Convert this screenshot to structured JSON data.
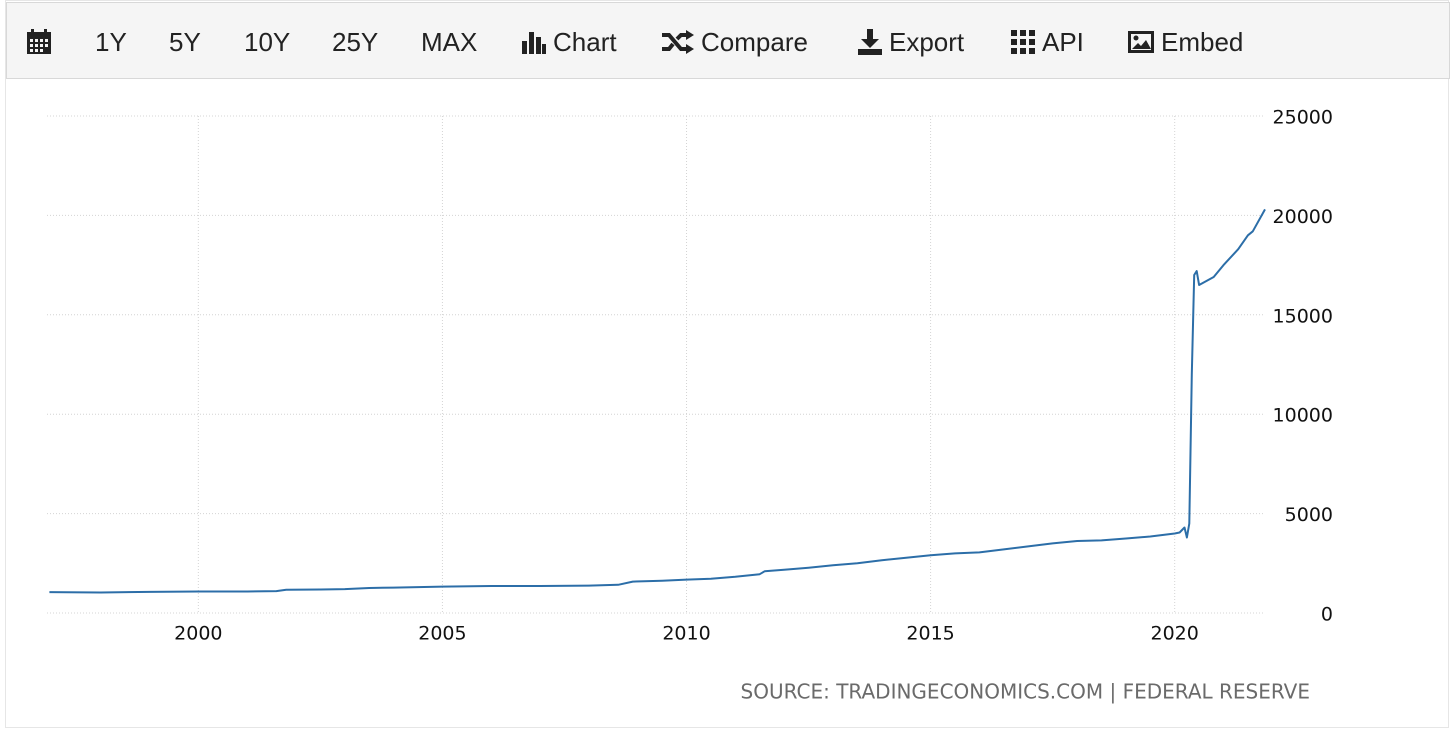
{
  "toolbar": {
    "items": [
      "1Y",
      "5Y",
      "10Y",
      "25Y",
      "MAX",
      "Chart",
      "Compare",
      "Export",
      "API",
      "Embed"
    ]
  },
  "chart_data": {
    "type": "line",
    "color": "#2c6ea8",
    "grid": true,
    "x": [
      1996.95,
      1998,
      1999,
      2000,
      2001,
      2001.6,
      2001.8,
      2002.5,
      2003,
      2003.5,
      2004,
      2005,
      2006,
      2007,
      2008,
      2008.6,
      2008.9,
      2009.5,
      2010,
      2010.5,
      2011,
      2011.5,
      2011.6,
      2012,
      2012.5,
      2013,
      2013.5,
      2014,
      2014.5,
      2015,
      2015.5,
      2016,
      2016.5,
      2017,
      2017.5,
      2018,
      2018.5,
      2019,
      2019.5,
      2020,
      2020.1,
      2020.2,
      2020.25,
      2020.3,
      2020.35,
      2020.4,
      2020.45,
      2020.5,
      2020.8,
      2021,
      2021.3,
      2021.5,
      2021.6,
      2021.85
    ],
    "values": [
      1050,
      1030,
      1060,
      1080,
      1080,
      1100,
      1170,
      1180,
      1200,
      1260,
      1280,
      1330,
      1360,
      1360,
      1380,
      1420,
      1580,
      1620,
      1680,
      1720,
      1820,
      1950,
      2100,
      2180,
      2280,
      2400,
      2500,
      2650,
      2780,
      2900,
      3000,
      3050,
      3200,
      3350,
      3500,
      3620,
      3650,
      3750,
      3850,
      4000,
      4050,
      4300,
      3800,
      4500,
      12000,
      17000,
      17200,
      16500,
      16900,
      17500,
      18300,
      19000,
      19200,
      20300
    ],
    "xlim": [
      1996.9,
      2021.85
    ],
    "xticks": [
      2000,
      2005,
      2010,
      2015,
      2020
    ],
    "ylim": [
      0,
      25000
    ],
    "yticks": [
      0,
      5000,
      10000,
      15000,
      20000,
      25000
    ],
    "source": "SOURCE: TRADINGECONOMICS.COM | FEDERAL RESERVE"
  }
}
